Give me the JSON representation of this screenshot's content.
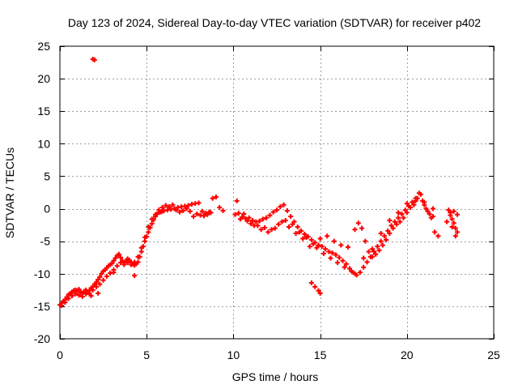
{
  "chart_data": {
    "type": "scatter",
    "title": "Day 123 of 2024, Sidereal Day-to-day VTEC variation (SDTVAR) for receiver p402",
    "xlabel": "GPS time / hours",
    "ylabel": "SDTVAR / TECUs",
    "xlim": [
      0,
      25
    ],
    "ylim": [
      -20,
      25
    ],
    "xticks": [
      0,
      5,
      10,
      15,
      20,
      25
    ],
    "xtick_labels": [
      "0",
      "5",
      "10",
      "15",
      "20",
      "25"
    ],
    "yticks": [
      -20,
      -15,
      -10,
      -5,
      0,
      5,
      10,
      15,
      20,
      25
    ],
    "ytick_labels": [
      "-20",
      "-15",
      "-10",
      "-5",
      "0",
      "5",
      "10",
      "15",
      "20",
      "25"
    ],
    "grid": true,
    "marker": "plus",
    "series": [
      {
        "name": "SDTVAR",
        "color": "#ff0000",
        "points": [
          [
            0.0,
            -14.8
          ],
          [
            0.1,
            -14.5
          ],
          [
            0.2,
            -14.2
          ],
          [
            0.3,
            -14.0
          ],
          [
            0.4,
            -13.6
          ],
          [
            0.5,
            -13.2
          ],
          [
            0.6,
            -13.0
          ],
          [
            0.7,
            -12.8
          ],
          [
            0.8,
            -12.6
          ],
          [
            0.9,
            -12.5
          ],
          [
            1.0,
            -12.6
          ],
          [
            1.1,
            -12.4
          ],
          [
            1.2,
            -12.8
          ],
          [
            1.3,
            -13.0
          ],
          [
            1.4,
            -12.7
          ],
          [
            1.5,
            -12.5
          ],
          [
            1.6,
            -12.9
          ],
          [
            1.7,
            -12.6
          ],
          [
            1.8,
            -12.2
          ],
          [
            1.9,
            -12.0
          ],
          [
            2.0,
            -11.6
          ],
          [
            2.1,
            -11.3
          ],
          [
            2.2,
            -10.9
          ],
          [
            2.3,
            -10.5
          ],
          [
            2.4,
            -10.0
          ],
          [
            2.5,
            -9.6
          ],
          [
            2.6,
            -9.4
          ],
          [
            2.7,
            -9.1
          ],
          [
            2.8,
            -8.8
          ],
          [
            2.9,
            -8.6
          ],
          [
            3.0,
            -8.4
          ],
          [
            3.1,
            -8.0
          ],
          [
            3.2,
            -7.6
          ],
          [
            3.3,
            -7.2
          ],
          [
            3.4,
            -7.0
          ],
          [
            3.5,
            -7.5
          ],
          [
            3.6,
            -8.0
          ],
          [
            3.7,
            -8.3
          ],
          [
            3.8,
            -8.0
          ],
          [
            3.9,
            -7.7
          ],
          [
            4.0,
            -7.9
          ],
          [
            4.1,
            -8.2
          ],
          [
            4.2,
            -8.5
          ],
          [
            4.3,
            -8.7
          ],
          [
            4.4,
            -8.5
          ],
          [
            4.5,
            -8.2
          ],
          [
            4.6,
            -7.4
          ],
          [
            4.7,
            -6.6
          ],
          [
            4.8,
            -5.8
          ],
          [
            4.9,
            -5.0
          ],
          [
            5.0,
            -4.3
          ],
          [
            5.1,
            -3.6
          ],
          [
            5.2,
            -2.9
          ],
          [
            5.3,
            -2.3
          ],
          [
            5.4,
            -1.7
          ],
          [
            5.5,
            -1.2
          ],
          [
            5.6,
            -0.8
          ],
          [
            5.7,
            -0.6
          ],
          [
            5.8,
            -0.5
          ],
          [
            5.9,
            -0.4
          ],
          [
            6.0,
            -0.3
          ],
          [
            6.2,
            -0.2
          ],
          [
            6.4,
            -0.1
          ],
          [
            6.6,
            0.0
          ],
          [
            6.8,
            0.2
          ],
          [
            7.0,
            0.3
          ],
          [
            7.2,
            0.4
          ],
          [
            7.4,
            0.5
          ],
          [
            7.6,
            0.7
          ],
          [
            7.8,
            0.8
          ],
          [
            8.0,
            0.9
          ],
          [
            8.2,
            -0.4
          ],
          [
            8.4,
            -0.7
          ],
          [
            8.6,
            -0.5
          ],
          [
            8.8,
            1.6
          ],
          [
            9.0,
            1.8
          ],
          [
            9.2,
            0.2
          ],
          [
            9.4,
            -0.3
          ],
          [
            0.1,
            -14.9
          ],
          [
            0.3,
            -14.4
          ],
          [
            0.5,
            -13.8
          ],
          [
            0.7,
            -13.4
          ],
          [
            0.9,
            -13.1
          ],
          [
            1.1,
            -13.3
          ],
          [
            1.3,
            -13.5
          ],
          [
            1.5,
            -13.1
          ],
          [
            1.7,
            -13.0
          ],
          [
            1.9,
            -12.5
          ],
          [
            2.1,
            -12.0
          ],
          [
            2.3,
            -11.6
          ],
          [
            2.5,
            -11.0
          ],
          [
            2.7,
            -10.4
          ],
          [
            2.9,
            -9.9
          ],
          [
            3.1,
            -9.4
          ],
          [
            3.3,
            -8.8
          ],
          [
            3.5,
            -8.3
          ],
          [
            3.7,
            -8.6
          ],
          [
            3.9,
            -8.3
          ],
          [
            4.1,
            -8.6
          ],
          [
            4.3,
            -8.2
          ],
          [
            4.5,
            -7.4
          ],
          [
            4.7,
            -6.0
          ],
          [
            4.9,
            -4.4
          ],
          [
            5.1,
            -2.8
          ],
          [
            5.3,
            -1.6
          ],
          [
            5.5,
            -0.9
          ],
          [
            5.7,
            -0.2
          ],
          [
            5.9,
            0.2
          ],
          [
            6.1,
            0.5
          ],
          [
            6.3,
            0.3
          ],
          [
            6.5,
            0.6
          ],
          [
            6.7,
            -0.2
          ],
          [
            6.9,
            -0.5
          ],
          [
            7.1,
            -0.3
          ],
          [
            7.3,
            0.0
          ],
          [
            7.5,
            -0.4
          ],
          [
            7.7,
            -1.2
          ],
          [
            7.9,
            -0.8
          ],
          [
            8.1,
            -1.0
          ],
          [
            8.3,
            -1.1
          ],
          [
            8.5,
            -0.9
          ],
          [
            8.7,
            -0.6
          ],
          [
            4.3,
            -10.3
          ],
          [
            3.1,
            -9.8
          ],
          [
            2.2,
            -13.0
          ],
          [
            1.8,
            -13.4
          ],
          [
            1.9,
            23.0
          ],
          [
            2.0,
            22.9
          ],
          [
            10.2,
            1.2
          ],
          [
            10.3,
            -0.7
          ],
          [
            10.5,
            -1.3
          ],
          [
            10.7,
            -1.5
          ],
          [
            10.9,
            -1.4
          ],
          [
            11.1,
            -1.8
          ],
          [
            11.3,
            -2.0
          ],
          [
            11.5,
            -1.9
          ],
          [
            11.7,
            -1.6
          ],
          [
            11.9,
            -1.4
          ],
          [
            12.1,
            -1.0
          ],
          [
            12.3,
            -0.5
          ],
          [
            12.5,
            -0.2
          ],
          [
            12.7,
            0.3
          ],
          [
            12.9,
            0.6
          ],
          [
            13.1,
            -0.3
          ],
          [
            13.3,
            -1.2
          ],
          [
            13.5,
            -2.0
          ],
          [
            13.7,
            -2.8
          ],
          [
            13.9,
            -3.4
          ],
          [
            14.1,
            -3.9
          ],
          [
            14.3,
            -4.3
          ],
          [
            14.5,
            -4.8
          ],
          [
            14.7,
            -5.2
          ],
          [
            14.9,
            -5.6
          ],
          [
            15.1,
            -5.8
          ],
          [
            15.3,
            -6.2
          ],
          [
            15.5,
            -6.6
          ],
          [
            15.7,
            -6.8
          ],
          [
            15.9,
            -7.1
          ],
          [
            16.1,
            -7.5
          ],
          [
            16.3,
            -8.0
          ],
          [
            16.5,
            -8.5
          ],
          [
            16.7,
            -9.2
          ],
          [
            16.9,
            -9.8
          ],
          [
            17.1,
            -10.2
          ],
          [
            17.3,
            -9.8
          ],
          [
            17.5,
            -9.0
          ],
          [
            17.7,
            -8.2
          ],
          [
            17.9,
            -7.4
          ],
          [
            18.1,
            -6.6
          ],
          [
            18.3,
            -5.8
          ],
          [
            18.5,
            -5.0
          ],
          [
            18.7,
            -4.2
          ],
          [
            18.9,
            -3.4
          ],
          [
            19.1,
            -2.6
          ],
          [
            19.3,
            -2.0
          ],
          [
            19.5,
            -1.4
          ],
          [
            19.7,
            -0.8
          ],
          [
            19.9,
            -0.2
          ],
          [
            20.1,
            0.4
          ],
          [
            20.3,
            1.0
          ],
          [
            20.5,
            1.6
          ],
          [
            20.7,
            2.4
          ],
          [
            20.9,
            1.2
          ],
          [
            21.1,
            0.0
          ],
          [
            21.3,
            -0.8
          ],
          [
            21.5,
            -1.2
          ],
          [
            11.0,
            -2.3
          ],
          [
            11.4,
            -2.6
          ],
          [
            11.8,
            -2.9
          ],
          [
            12.2,
            -3.2
          ],
          [
            12.6,
            -2.4
          ],
          [
            13.0,
            -1.8
          ],
          [
            13.4,
            -2.4
          ],
          [
            13.8,
            -3.6
          ],
          [
            14.2,
            -4.4
          ],
          [
            14.6,
            -5.4
          ],
          [
            15.0,
            -4.6
          ],
          [
            15.4,
            -4.2
          ],
          [
            15.8,
            -5.0
          ],
          [
            16.2,
            -5.6
          ],
          [
            16.6,
            -5.9
          ],
          [
            17.0,
            -3.2
          ],
          [
            17.2,
            -2.2
          ],
          [
            17.4,
            -3.0
          ],
          [
            17.6,
            -5.0
          ],
          [
            17.8,
            -6.6
          ],
          [
            18.0,
            -7.4
          ],
          [
            18.2,
            -7.0
          ],
          [
            18.4,
            -6.4
          ],
          [
            18.6,
            -5.6
          ],
          [
            18.8,
            -4.8
          ],
          [
            19.0,
            -3.8
          ],
          [
            19.2,
            -3.0
          ],
          [
            19.4,
            -2.4
          ],
          [
            19.6,
            -2.0
          ],
          [
            19.8,
            -1.4
          ],
          [
            20.0,
            -0.6
          ],
          [
            20.2,
            0.2
          ],
          [
            20.4,
            0.6
          ],
          [
            20.6,
            1.6
          ],
          [
            20.8,
            2.2
          ],
          [
            21.0,
            0.6
          ],
          [
            21.2,
            -0.4
          ],
          [
            21.4,
            -1.4
          ],
          [
            21.6,
            -3.6
          ],
          [
            21.8,
            -4.2
          ],
          [
            10.1,
            -0.9
          ],
          [
            10.4,
            -1.6
          ],
          [
            10.6,
            -0.8
          ],
          [
            10.8,
            -1.9
          ],
          [
            11.2,
            -2.6
          ],
          [
            11.6,
            -3.2
          ],
          [
            12.0,
            -3.6
          ],
          [
            12.4,
            -3.0
          ],
          [
            12.8,
            -2.0
          ],
          [
            13.2,
            -2.8
          ],
          [
            13.6,
            -3.8
          ],
          [
            14.0,
            -4.6
          ],
          [
            14.4,
            -5.8
          ],
          [
            14.8,
            -6.0
          ],
          [
            15.2,
            -6.9
          ],
          [
            15.6,
            -7.6
          ],
          [
            16.0,
            -8.3
          ],
          [
            16.4,
            -9.0
          ],
          [
            16.8,
            -9.6
          ],
          [
            17.0,
            -10.0
          ],
          [
            17.5,
            -7.6
          ],
          [
            18.0,
            -6.2
          ],
          [
            18.5,
            -3.8
          ],
          [
            19.0,
            -1.8
          ],
          [
            19.5,
            -0.6
          ],
          [
            20.0,
            0.8
          ],
          [
            20.5,
            1.2
          ],
          [
            21.0,
            1.0
          ],
          [
            21.5,
            0.0
          ],
          [
            14.5,
            -11.4
          ],
          [
            14.7,
            -12.0
          ],
          [
            14.9,
            -12.6
          ],
          [
            15.0,
            -13.0
          ],
          [
            22.4,
            -0.2
          ],
          [
            22.5,
            -1.0
          ],
          [
            22.6,
            -1.6
          ],
          [
            22.7,
            -2.2
          ],
          [
            22.8,
            -3.0
          ],
          [
            22.9,
            -3.6
          ],
          [
            22.5,
            -0.6
          ],
          [
            22.7,
            -0.4
          ],
          [
            22.9,
            -0.9
          ],
          [
            22.3,
            -2.0
          ],
          [
            22.6,
            -2.8
          ],
          [
            22.8,
            -4.2
          ]
        ]
      }
    ]
  }
}
